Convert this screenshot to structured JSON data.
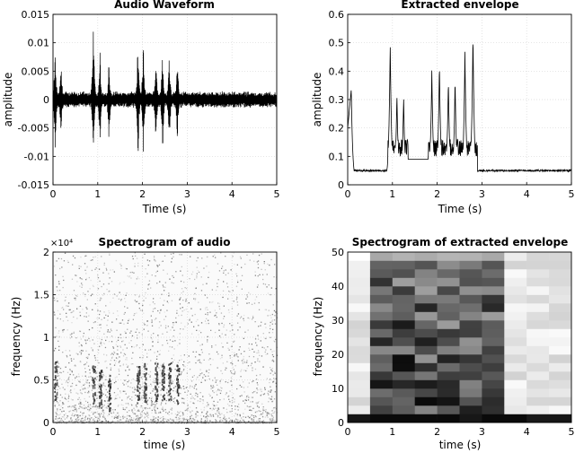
{
  "chart_data": [
    {
      "id": "waveform",
      "type": "line",
      "title": "Audio Waveform",
      "xlabel": "Time (s)",
      "ylabel": "amplitude",
      "xlim": [
        0,
        5
      ],
      "ylim": [
        -0.015,
        0.015
      ],
      "xticks": [
        "0",
        "1",
        "2",
        "3",
        "4",
        "5"
      ],
      "yticks": [
        "-0.015",
        "-0.01",
        "-0.005",
        "0",
        "0.005",
        "0.01",
        "0.015"
      ],
      "grid": true,
      "noise_amplitude": 0.0015,
      "bursts": [
        {
          "t": 0.05,
          "amp": 0.012
        },
        {
          "t": 0.18,
          "amp": 0.009
        },
        {
          "t": 0.9,
          "amp": 0.0145
        },
        {
          "t": 1.05,
          "amp": 0.01
        },
        {
          "t": 1.25,
          "amp": 0.0085
        },
        {
          "t": 1.9,
          "amp": 0.0135
        },
        {
          "t": 2.02,
          "amp": 0.012
        },
        {
          "t": 2.3,
          "amp": 0.01
        },
        {
          "t": 2.45,
          "amp": 0.011
        },
        {
          "t": 2.6,
          "amp": 0.0105
        },
        {
          "t": 2.78,
          "amp": 0.009
        }
      ]
    },
    {
      "id": "envelope",
      "type": "line",
      "title": "Extracted envelope",
      "xlabel": "Time (s)",
      "ylabel": "amplitude",
      "xlim": [
        0,
        5
      ],
      "ylim": [
        0,
        0.6
      ],
      "xticks": [
        "0",
        "1",
        "2",
        "3",
        "4",
        "5"
      ],
      "yticks": [
        "0",
        "0.1",
        "0.2",
        "0.3",
        "0.4",
        "0.5",
        "0.6"
      ],
      "grid": true,
      "baseline": 0.05,
      "peaks": [
        {
          "t": 0.08,
          "v": 0.34
        },
        {
          "t": 0.95,
          "v": 0.5
        },
        {
          "t": 1.1,
          "v": 0.32
        },
        {
          "t": 1.25,
          "v": 0.31
        },
        {
          "t": 1.88,
          "v": 0.4
        },
        {
          "t": 2.05,
          "v": 0.43
        },
        {
          "t": 2.25,
          "v": 0.37
        },
        {
          "t": 2.4,
          "v": 0.37
        },
        {
          "t": 2.62,
          "v": 0.47
        },
        {
          "t": 2.8,
          "v": 0.53
        }
      ]
    },
    {
      "id": "spec_audio",
      "type": "heatmap",
      "title": "Spectrogram of audio",
      "xlabel": "time (s)",
      "ylabel": "frequency (Hz)",
      "xlim": [
        0,
        5
      ],
      "ylim": [
        0,
        22050
      ],
      "exponent_label": "×10⁴",
      "xticks": [
        "0",
        "1",
        "2",
        "3",
        "4",
        "5"
      ],
      "yticks": [
        "0",
        "0.5",
        "1",
        "1.5",
        "2"
      ],
      "grid": true,
      "events": [
        {
          "t": 0.05,
          "f": 5500
        },
        {
          "t": 0.9,
          "f": 5000
        },
        {
          "t": 1.05,
          "f": 4500
        },
        {
          "t": 1.25,
          "f": 4000
        },
        {
          "t": 1.9,
          "f": 5000
        },
        {
          "t": 2.05,
          "f": 5200
        },
        {
          "t": 2.3,
          "f": 5400
        },
        {
          "t": 2.45,
          "f": 5400
        },
        {
          "t": 2.6,
          "f": 5400
        },
        {
          "t": 2.78,
          "f": 5000
        }
      ]
    },
    {
      "id": "spec_env",
      "type": "heatmap",
      "title": "Spectrogram of extracted envelope",
      "xlabel": "time (s)",
      "ylabel": "frequency (Hz)",
      "xlim": [
        0,
        5
      ],
      "ylim": [
        0,
        50
      ],
      "xticks": [
        "0",
        "1",
        "2",
        "3",
        "4",
        "5"
      ],
      "yticks": [
        "0",
        "10",
        "20",
        "30",
        "40",
        "50"
      ],
      "grid": true,
      "time_bins": [
        0.25,
        0.75,
        1.25,
        1.75,
        2.25,
        2.75,
        3.25,
        3.75,
        4.25,
        4.75
      ],
      "freq_bin_hz": 2.5
    }
  ]
}
